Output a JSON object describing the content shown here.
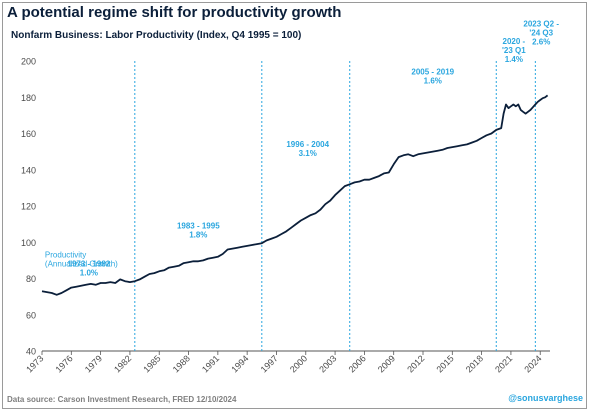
{
  "title": "A potential regime shift for productivity growth",
  "footer": {
    "source": "Data source: Carson Investment Research, FRED   12/10/2024",
    "handle": "@sonusvarghese"
  },
  "colors": {
    "line": "#0b1f3a",
    "accent": "#2aa6df",
    "axis_text": "#4a4a4a"
  },
  "chart_data": {
    "type": "line",
    "title": "Nonfarm Business: Labor Productivity (Index, Q4 1995 = 100)",
    "xlabel": "",
    "ylabel": "",
    "xlim": [
      1973,
      2025
    ],
    "ylim": [
      40,
      200
    ],
    "yticks": [
      40,
      60,
      80,
      100,
      120,
      140,
      160,
      180,
      200
    ],
    "xticks": [
      "1973",
      "1976",
      "1979",
      "1982",
      "1985",
      "1988",
      "1991",
      "1994",
      "1997",
      "2000",
      "2003",
      "2006",
      "2009",
      "2012",
      "2015",
      "2018",
      "2021",
      "2024"
    ],
    "grid": false,
    "regime_dividers": [
      1982.5,
      1995.5,
      2004.5,
      2019.5,
      2023.5
    ],
    "annotations": [
      {
        "label": "Productivity\n(Annualized Growth)",
        "x": 1973.3,
        "y": 91.5
      },
      {
        "label": "1973 - 1982\n1.0%",
        "x": 1977.8,
        "y": 86.5
      },
      {
        "label": "1983 - 1995\n1.8%",
        "x": 1989.0,
        "y": 107.5
      },
      {
        "label": "1996 - 2004\n3.1%",
        "x": 2000.2,
        "y": 152.5
      },
      {
        "label": "2005 - 2019\n1.6%",
        "x": 2013.0,
        "y": 192.5
      },
      {
        "label": "2020 -\n'23 Q1\n1.4%",
        "x": 2021.3,
        "y": 209.5
      },
      {
        "label": "2023 Q2 -\n'24 Q3\n2.6%",
        "x": 2024.1,
        "y": 219.0
      }
    ],
    "series": [
      {
        "values": [
          [
            1973.0,
            73.0
          ],
          [
            1973.5,
            72.5
          ],
          [
            1974.0,
            72.0
          ],
          [
            1974.5,
            71.0
          ],
          [
            1975.0,
            72.0
          ],
          [
            1975.5,
            73.5
          ],
          [
            1976.0,
            75.0
          ],
          [
            1976.5,
            75.5
          ],
          [
            1977.0,
            76.0
          ],
          [
            1977.5,
            76.5
          ],
          [
            1978.0,
            77.0
          ],
          [
            1978.5,
            76.5
          ],
          [
            1979.0,
            77.5
          ],
          [
            1979.5,
            77.5
          ],
          [
            1980.0,
            78.0
          ],
          [
            1980.5,
            77.5
          ],
          [
            1981.0,
            79.5
          ],
          [
            1981.5,
            78.5
          ],
          [
            1982.0,
            78.0
          ],
          [
            1982.5,
            78.5
          ],
          [
            1983.0,
            79.5
          ],
          [
            1983.5,
            81.0
          ],
          [
            1984.0,
            82.5
          ],
          [
            1984.5,
            83.0
          ],
          [
            1985.0,
            84.0
          ],
          [
            1985.5,
            84.5
          ],
          [
            1986.0,
            86.0
          ],
          [
            1986.5,
            86.5
          ],
          [
            1987.0,
            87.0
          ],
          [
            1987.5,
            88.5
          ],
          [
            1988.0,
            89.0
          ],
          [
            1988.5,
            89.5
          ],
          [
            1989.0,
            89.5
          ],
          [
            1989.5,
            90.0
          ],
          [
            1990.0,
            91.0
          ],
          [
            1990.5,
            91.5
          ],
          [
            1991.0,
            92.0
          ],
          [
            1991.5,
            93.5
          ],
          [
            1992.0,
            96.0
          ],
          [
            1992.5,
            96.5
          ],
          [
            1993.0,
            97.0
          ],
          [
            1993.5,
            97.5
          ],
          [
            1994.0,
            98.0
          ],
          [
            1994.5,
            98.5
          ],
          [
            1995.0,
            99.0
          ],
          [
            1995.5,
            99.5
          ],
          [
            1996.0,
            101.0
          ],
          [
            1996.5,
            102.0
          ],
          [
            1997.0,
            103.0
          ],
          [
            1997.5,
            104.5
          ],
          [
            1998.0,
            106.0
          ],
          [
            1998.5,
            108.0
          ],
          [
            1999.0,
            110.0
          ],
          [
            1999.5,
            112.0
          ],
          [
            2000.0,
            113.5
          ],
          [
            2000.5,
            115.0
          ],
          [
            2001.0,
            116.0
          ],
          [
            2001.5,
            118.0
          ],
          [
            2002.0,
            121.0
          ],
          [
            2002.5,
            123.0
          ],
          [
            2003.0,
            126.0
          ],
          [
            2003.5,
            128.5
          ],
          [
            2004.0,
            131.0
          ],
          [
            2004.5,
            132.0
          ],
          [
            2005.0,
            133.0
          ],
          [
            2005.5,
            133.5
          ],
          [
            2006.0,
            134.5
          ],
          [
            2006.5,
            134.5
          ],
          [
            2007.0,
            135.5
          ],
          [
            2007.5,
            136.5
          ],
          [
            2008.0,
            138.0
          ],
          [
            2008.5,
            138.5
          ],
          [
            2009.0,
            143.0
          ],
          [
            2009.5,
            147.0
          ],
          [
            2010.0,
            148.0
          ],
          [
            2010.5,
            148.5
          ],
          [
            2011.0,
            147.5
          ],
          [
            2011.5,
            148.5
          ],
          [
            2012.0,
            149.0
          ],
          [
            2012.5,
            149.5
          ],
          [
            2013.0,
            150.0
          ],
          [
            2013.5,
            150.5
          ],
          [
            2014.0,
            151.0
          ],
          [
            2014.5,
            152.0
          ],
          [
            2015.0,
            152.5
          ],
          [
            2015.5,
            153.0
          ],
          [
            2016.0,
            153.5
          ],
          [
            2016.5,
            154.0
          ],
          [
            2017.0,
            155.0
          ],
          [
            2017.5,
            156.0
          ],
          [
            2018.0,
            157.5
          ],
          [
            2018.5,
            159.0
          ],
          [
            2019.0,
            160.0
          ],
          [
            2019.5,
            162.0
          ],
          [
            2020.0,
            163.0
          ],
          [
            2020.25,
            171.0
          ],
          [
            2020.5,
            176.0
          ],
          [
            2020.75,
            174.0
          ],
          [
            2021.0,
            175.0
          ],
          [
            2021.25,
            176.0
          ],
          [
            2021.5,
            175.0
          ],
          [
            2021.75,
            176.0
          ],
          [
            2022.0,
            173.0
          ],
          [
            2022.25,
            172.0
          ],
          [
            2022.5,
            171.0
          ],
          [
            2022.75,
            172.0
          ],
          [
            2023.0,
            173.0
          ],
          [
            2023.25,
            174.5
          ],
          [
            2023.5,
            176.0
          ],
          [
            2023.75,
            177.5
          ],
          [
            2024.0,
            178.5
          ],
          [
            2024.25,
            179.5
          ],
          [
            2024.5,
            180.0
          ],
          [
            2024.75,
            181.0
          ]
        ]
      }
    ]
  }
}
